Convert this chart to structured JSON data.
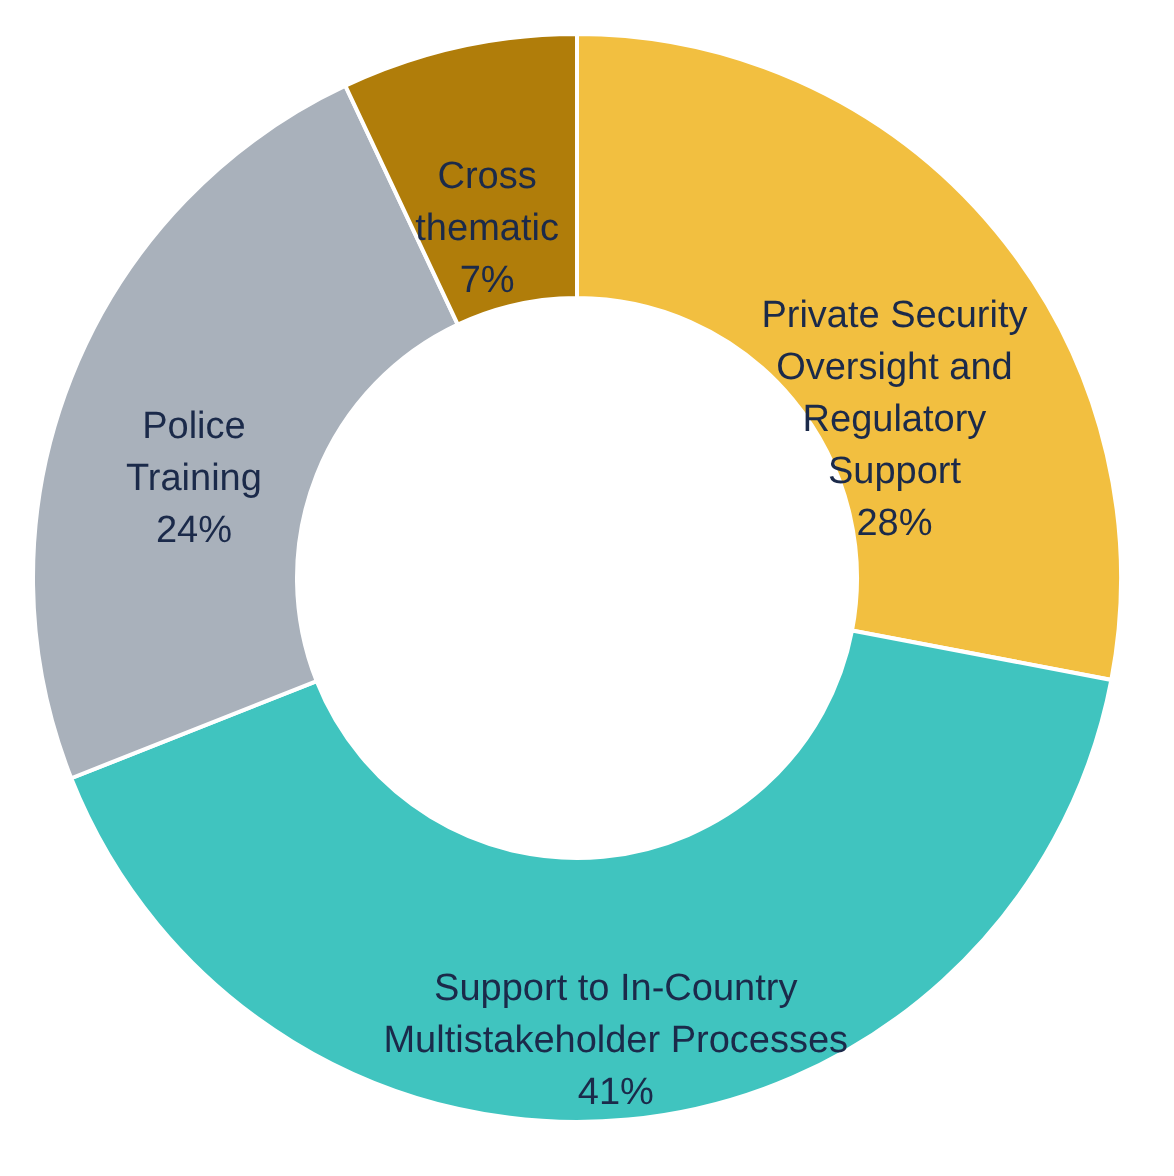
{
  "chart_data": {
    "type": "donut",
    "categories": [
      "Private Security Oversight and Regulatory Support",
      "Support to In-Country Multistakeholder Processes",
      "Police Training",
      "Cross thematic"
    ],
    "values": [
      28,
      41,
      24,
      7
    ],
    "colors": [
      "#f2bf40",
      "#40c4bf",
      "#a9b1bb",
      "#b07d0a"
    ],
    "data_labels": true,
    "value_labels": [
      "28%",
      "41%",
      "24%",
      "7%"
    ],
    "legend": false
  }
}
